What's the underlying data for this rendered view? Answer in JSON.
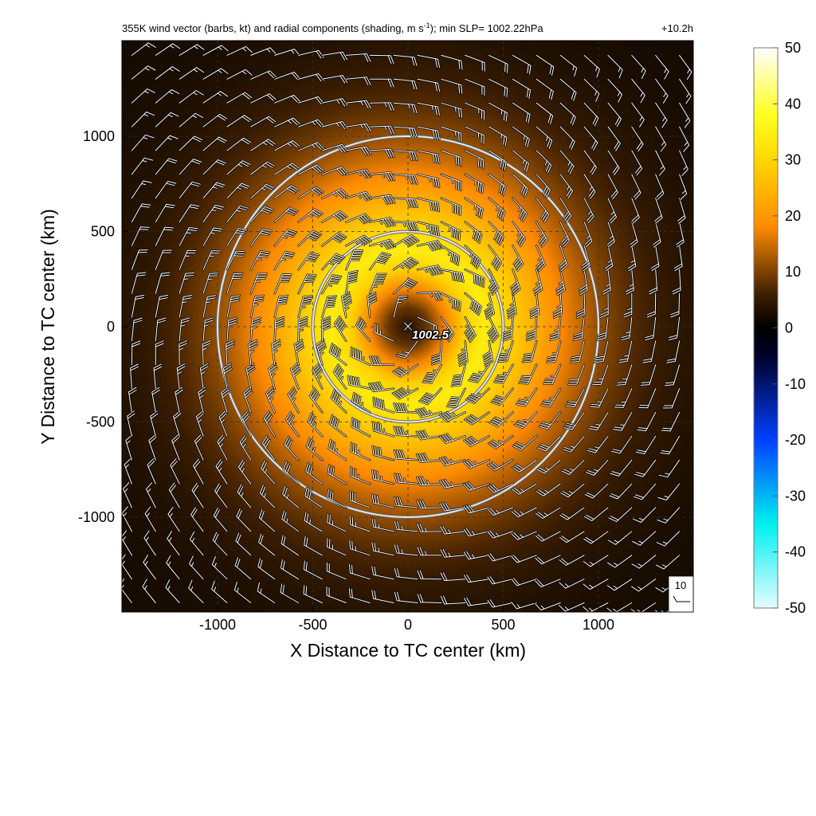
{
  "chart_data": {
    "type": "heatmap",
    "title": "355K wind vector (barbs, kt) and radial components (shading, m s",
    "title_superscript": "-1",
    "title_suffix": "); min SLP= 1002.22hPa",
    "time_label": "+10.2h",
    "xlabel": "X Distance to TC center (km)",
    "ylabel": "Y Distance to TC center (km)",
    "xlim": [
      -1500,
      1500
    ],
    "ylim": [
      -1500,
      1500
    ],
    "x_ticks": [
      -1000,
      -500,
      0,
      500,
      1000
    ],
    "y_ticks": [
      -1000,
      -500,
      0,
      500,
      1000
    ],
    "x_tick_labels": [
      "-1000",
      "-500",
      "0",
      "500",
      "1000"
    ],
    "y_tick_labels": [
      "-1000",
      "-500",
      "0",
      "500",
      "1000"
    ],
    "grid": "dashed",
    "center_marker": "×",
    "center_label": "1002.5",
    "range_rings_km": [
      500,
      1000
    ],
    "shading_peak_radius_km": 350,
    "shading_peak_value": 35,
    "colorbar": {
      "range": [
        -50,
        50
      ],
      "tick_values": [
        50,
        40,
        30,
        20,
        10,
        0,
        -10,
        -20,
        -30,
        -40,
        -50
      ],
      "tick_labels": [
        "50",
        "40",
        "30",
        "20",
        "10",
        "0",
        "-10",
        "-20",
        "-30",
        "-40",
        "-50"
      ],
      "colors": [
        "#e6fbff",
        "#00f0f0",
        "#0040ff",
        "#00002a",
        "#000000",
        "#3d1e00",
        "#ff8a00",
        "#ffd700",
        "#ffff20",
        "#ffffff"
      ],
      "color_stops": [
        -50,
        -35,
        -20,
        -5,
        0,
        6,
        18,
        30,
        38,
        50
      ]
    },
    "barb_reference": {
      "label": "10",
      "value_kt": 10
    },
    "barb_spacing_km": 125
  }
}
